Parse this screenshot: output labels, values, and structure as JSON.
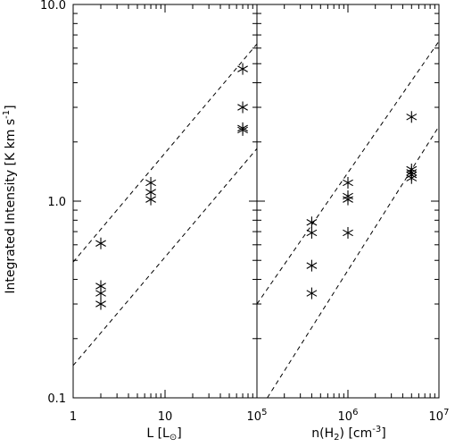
{
  "chart_data": [
    {
      "type": "scatter",
      "panel": "left",
      "xscale": "log",
      "yscale": "log",
      "xlim": [
        1,
        100
      ],
      "ylim": [
        0.1,
        10.0
      ],
      "xlabel_main": "L [L",
      "xlabel_symbol": "⊙",
      "xlabel_end": "]",
      "ylabel_main": "Integrated Intensity [K km s",
      "ylabel_sup": "-1",
      "ylabel_end": "]",
      "xticks": [
        "1",
        "10"
      ],
      "yticks": [
        "0.1",
        "1.0",
        "10.0"
      ],
      "series": [
        {
          "marker": "asterisk",
          "points": [
            {
              "x": 2,
              "y": 0.61
            },
            {
              "x": 2,
              "y": 0.37
            },
            {
              "x": 2,
              "y": 0.34
            },
            {
              "x": 2,
              "y": 0.3
            },
            {
              "x": 7,
              "y": 1.24
            },
            {
              "x": 7,
              "y": 1.11
            },
            {
              "x": 7,
              "y": 1.02
            },
            {
              "x": 70,
              "y": 4.7
            },
            {
              "x": 70,
              "y": 3.0
            },
            {
              "x": 70,
              "y": 2.35
            },
            {
              "x": 70,
              "y": 2.3
            }
          ]
        }
      ],
      "lines": [
        {
          "style": "dashed",
          "x": [
            1,
            100
          ],
          "y": [
            0.49,
            6.3
          ]
        },
        {
          "style": "dashed",
          "x": [
            1,
            100
          ],
          "y": [
            0.146,
            1.85
          ]
        }
      ]
    },
    {
      "type": "scatter",
      "panel": "right",
      "xscale": "log",
      "yscale": "log",
      "xlim": [
        100000,
        10000000
      ],
      "ylim": [
        0.1,
        10.0
      ],
      "xlabel_main": "n(H",
      "xlabel_sub": "2",
      "xlabel_mid": ") [cm",
      "xlabel_sup": "-3",
      "xlabel_end": "]",
      "xticks": [
        {
          "base": "10",
          "exp": "5"
        },
        {
          "base": "10",
          "exp": "6"
        },
        {
          "base": "10",
          "exp": "7"
        }
      ],
      "series": [
        {
          "marker": "asterisk",
          "points": [
            {
              "x": 400000,
              "y": 0.78
            },
            {
              "x": 400000,
              "y": 0.69
            },
            {
              "x": 400000,
              "y": 0.47
            },
            {
              "x": 400000,
              "y": 0.34
            },
            {
              "x": 1000000,
              "y": 1.24
            },
            {
              "x": 1000000,
              "y": 1.06
            },
            {
              "x": 1000000,
              "y": 1.02
            },
            {
              "x": 1000000,
              "y": 0.69
            },
            {
              "x": 5000000,
              "y": 2.68
            },
            {
              "x": 5000000,
              "y": 1.45
            },
            {
              "x": 5000000,
              "y": 1.4
            },
            {
              "x": 5000000,
              "y": 1.36
            },
            {
              "x": 5000000,
              "y": 1.31
            }
          ]
        }
      ],
      "lines": [
        {
          "style": "dashed",
          "x": [
            100000,
            10000000
          ],
          "y": [
            0.3,
            6.5
          ]
        },
        {
          "style": "dashed",
          "x": [
            130000,
            10000000
          ],
          "y": [
            0.1,
            2.4
          ]
        }
      ]
    }
  ]
}
